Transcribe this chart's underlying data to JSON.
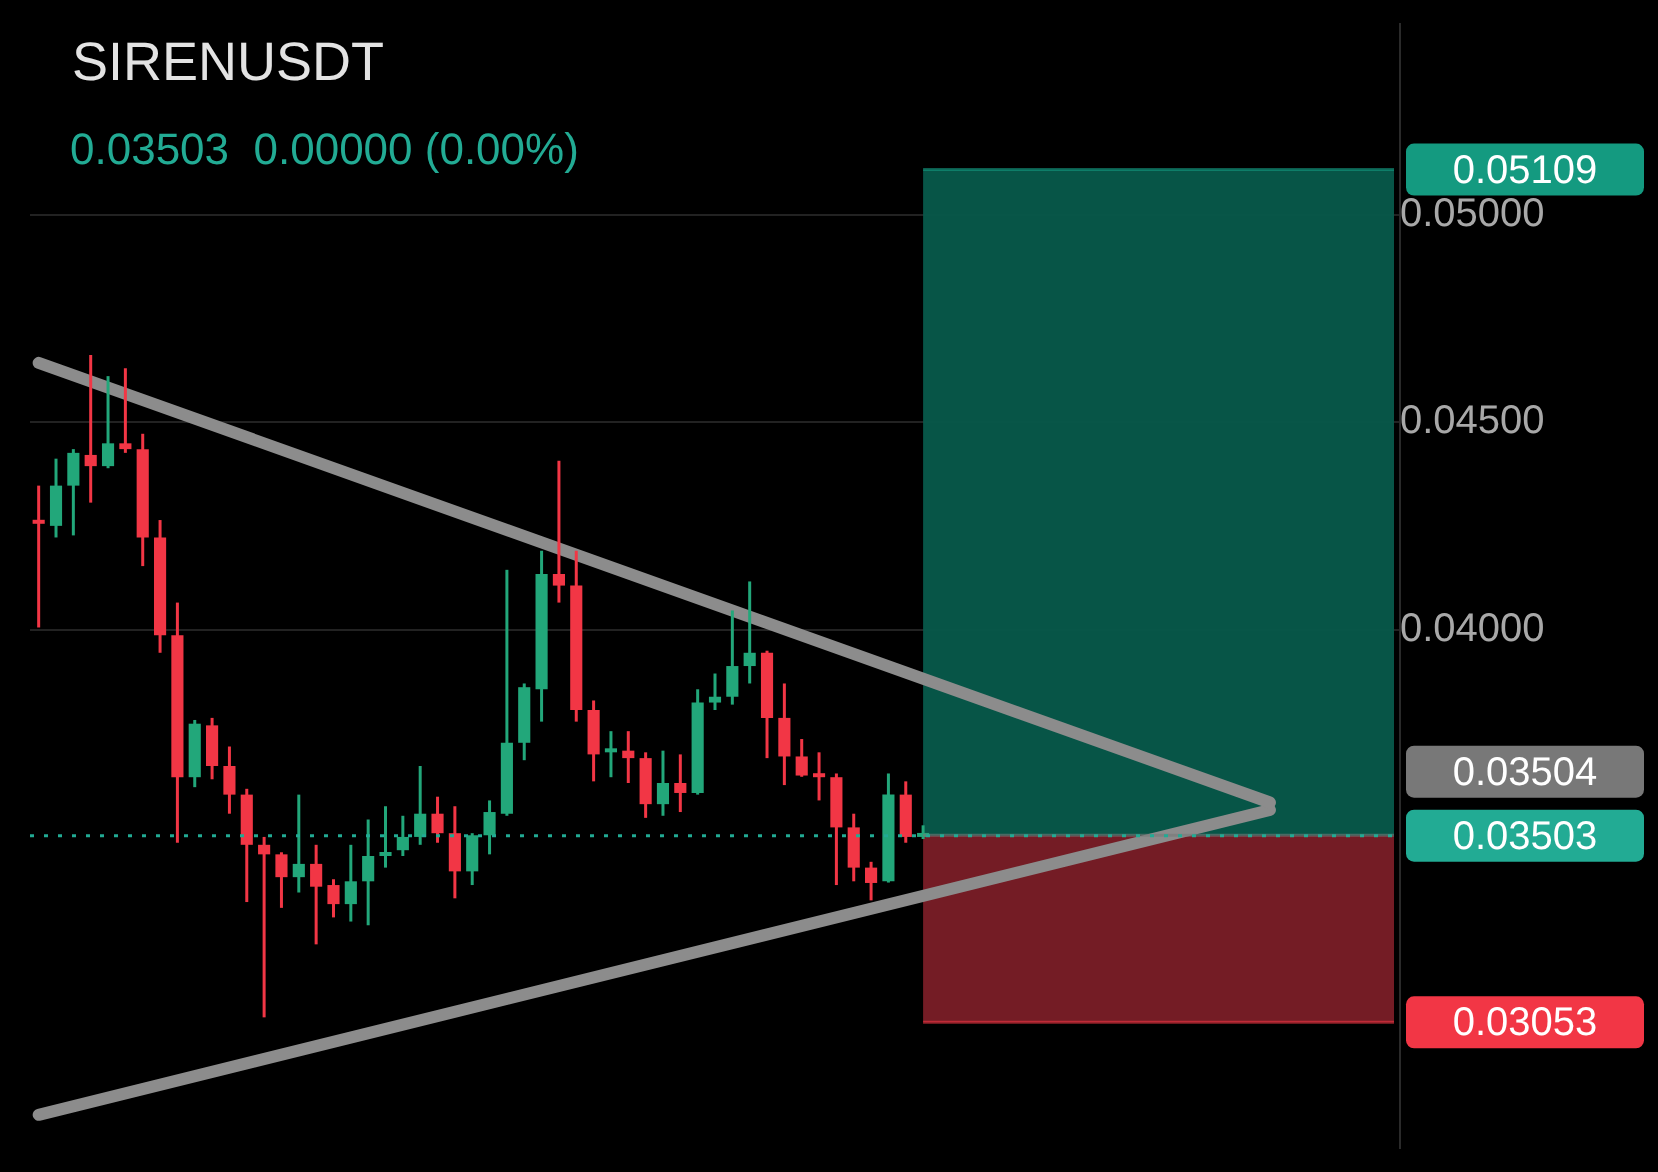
{
  "chart_data": {
    "type": "candlestick",
    "title": "SIRENUSDT",
    "subtitle": "0.03503  0.00000 (0.00%)",
    "categories": [
      null,
      null,
      null,
      null,
      null,
      null,
      null,
      null,
      null,
      null,
      null,
      null,
      null,
      null,
      null,
      null,
      null,
      null,
      null,
      null,
      null,
      null,
      null,
      null,
      null,
      null,
      null,
      null,
      null,
      null,
      null,
      null,
      null,
      null,
      null,
      null,
      null,
      null,
      null,
      null,
      null,
      null,
      null,
      null,
      null,
      null,
      null,
      null,
      null,
      null,
      null,
      null,
      null,
      null,
      null,
      null,
      null,
      null,
      null,
      null,
      null,
      null,
      null,
      null,
      null,
      null,
      null,
      null,
      null,
      null,
      null,
      null,
      null,
      null,
      null,
      null,
      null,
      null,
      null
    ],
    "ohlc": [
      [
        0.04259,
        0.04347,
        0.04005,
        0.04255
      ],
      [
        0.0425,
        0.04412,
        0.04222,
        0.04347
      ],
      [
        0.04347,
        0.04435,
        0.04227,
        0.04426
      ],
      [
        0.04421,
        0.04662,
        0.04306,
        0.04394
      ],
      [
        0.04394,
        0.04611,
        0.04389,
        0.04449
      ],
      [
        0.04449,
        0.0463,
        0.04426,
        0.04435
      ],
      [
        0.04435,
        0.04472,
        0.04153,
        0.04222
      ],
      [
        0.04222,
        0.04264,
        0.03944,
        0.03986
      ],
      [
        0.03986,
        0.04065,
        0.03486,
        0.03644
      ],
      [
        0.03644,
        0.03782,
        0.0362,
        0.03773
      ],
      [
        0.03769,
        0.03787,
        0.03639,
        0.03671
      ],
      [
        0.03671,
        0.03718,
        0.03556,
        0.03602
      ],
      [
        0.03602,
        0.03616,
        0.03343,
        0.03481
      ],
      [
        0.03481,
        0.035,
        0.03065,
        0.03458
      ],
      [
        0.03458,
        0.03463,
        0.03329,
        0.03403
      ],
      [
        0.03403,
        0.03602,
        0.03366,
        0.03435
      ],
      [
        0.03435,
        0.03481,
        0.03241,
        0.0338
      ],
      [
        0.03384,
        0.03398,
        0.03306,
        0.03338
      ],
      [
        0.03338,
        0.03481,
        0.03296,
        0.03393
      ],
      [
        0.03393,
        0.03542,
        0.03287,
        0.03454
      ],
      [
        0.03454,
        0.03574,
        0.03426,
        0.03463
      ],
      [
        0.03468,
        0.03551,
        0.03454,
        0.035
      ],
      [
        0.035,
        0.03671,
        0.03481,
        0.03556
      ],
      [
        0.03556,
        0.03597,
        0.03486,
        0.03509
      ],
      [
        0.03509,
        0.03574,
        0.03352,
        0.03417
      ],
      [
        0.03417,
        0.03509,
        0.03384,
        0.03504
      ],
      [
        0.03504,
        0.03588,
        0.03458,
        0.0356
      ],
      [
        0.03556,
        0.04144,
        0.03551,
        0.03727
      ],
      [
        0.03727,
        0.0387,
        0.03685,
        0.03861
      ],
      [
        0.03856,
        0.0419,
        0.03778,
        0.04134
      ],
      [
        0.04134,
        0.04407,
        0.04065,
        0.04106
      ],
      [
        0.04106,
        0.0419,
        0.03778,
        0.03806
      ],
      [
        0.03806,
        0.03829,
        0.03634,
        0.03699
      ],
      [
        0.03704,
        0.03755,
        0.03644,
        0.03713
      ],
      [
        0.03708,
        0.03755,
        0.0363,
        0.0369
      ],
      [
        0.0369,
        0.03704,
        0.03546,
        0.03579
      ],
      [
        0.03579,
        0.03708,
        0.03551,
        0.0363
      ],
      [
        0.0363,
        0.03699,
        0.0356,
        0.03606
      ],
      [
        0.03606,
        0.03856,
        0.03602,
        0.03824
      ],
      [
        0.03824,
        0.03894,
        0.03806,
        0.03838
      ],
      [
        0.03838,
        0.04046,
        0.03819,
        0.03912
      ],
      [
        0.03912,
        0.04116,
        0.0387,
        0.03944
      ],
      [
        0.03944,
        0.03949,
        0.0369,
        0.03787
      ],
      [
        0.03787,
        0.0387,
        0.03625,
        0.03694
      ],
      [
        0.03694,
        0.03736,
        0.03645,
        0.03648
      ],
      [
        0.03648,
        0.03704,
        0.03588,
        0.03644
      ],
      [
        0.03644,
        0.03653,
        0.03384,
        0.03523
      ],
      [
        0.03523,
        0.03556,
        0.03393,
        0.03426
      ],
      [
        0.03426,
        0.0344,
        0.03347,
        0.03389
      ],
      [
        0.03393,
        0.03653,
        0.0339,
        0.03602
      ],
      [
        0.03602,
        0.03634,
        0.03486,
        0.035
      ],
      [
        0.035,
        0.03528,
        0.03495,
        0.03503
      ],
      null,
      null,
      null,
      null,
      null,
      null,
      null,
      null,
      null,
      null,
      null,
      null,
      null,
      null,
      null,
      null,
      null,
      null,
      null,
      null,
      null,
      null,
      null,
      null,
      null,
      null,
      null
    ],
    "colors": [
      "#f23645",
      "#22a77a",
      "#22a77a",
      "#f23645",
      "#22a77a",
      "#f23645",
      "#f23645",
      "#f23645",
      "#f23645",
      "#22a77a",
      "#f23645",
      "#f23645",
      "#f23645",
      "#f23645",
      "#f23645",
      "#22a77a",
      "#f23645",
      "#f23645",
      "#22a77a",
      "#22a77a",
      "#22a77a",
      "#22a77a",
      "#22a77a",
      "#f23645",
      "#f23645",
      "#22a77a",
      "#22a77a",
      "#22a77a",
      "#22a77a",
      "#22a77a",
      "#f23645",
      "#f23645",
      "#f23645",
      "#22a77a",
      "#f23645",
      "#f23645",
      "#22a77a",
      "#f23645",
      "#22a77a",
      "#22a77a",
      "#22a77a",
      "#22a77a",
      "#f23645",
      "#f23645",
      "#f23645",
      "#f23645",
      "#f23645",
      "#f23645",
      "#f23645",
      "#22a77a",
      "#f23645",
      "#22a77a",
      null,
      null,
      null,
      null,
      null,
      null,
      null,
      null,
      null,
      null,
      null,
      null,
      null,
      null,
      null,
      null,
      null,
      null,
      null,
      null,
      null,
      null,
      null,
      null,
      null,
      null,
      null
    ],
    "series": [
      {
        "type": "line",
        "color": "#8c8c8c",
        "values": [
          0.04643,
          null,
          null,
          null,
          null,
          null,
          null,
          null,
          null,
          null,
          null,
          null,
          null,
          null,
          null,
          null,
          null,
          null,
          null,
          null,
          null,
          null,
          null,
          null,
          null,
          null,
          null,
          null,
          null,
          null,
          null,
          null,
          null,
          null,
          null,
          null,
          null,
          null,
          null,
          null,
          null,
          null,
          null,
          null,
          null,
          null,
          null,
          null,
          null,
          null,
          null,
          null,
          null,
          null,
          null,
          null,
          null,
          null,
          null,
          null,
          null,
          null,
          null,
          null,
          null,
          null,
          null,
          null,
          null,
          null,
          null,
          0.03583,
          null,
          null,
          null,
          null,
          null,
          null,
          null
        ]
      },
      {
        "type": "line",
        "color": "#8c8c8c",
        "values": [
          0.0283,
          null,
          null,
          null,
          null,
          null,
          null,
          null,
          null,
          null,
          null,
          null,
          null,
          null,
          null,
          null,
          null,
          null,
          null,
          null,
          null,
          null,
          null,
          null,
          null,
          null,
          null,
          null,
          null,
          null,
          null,
          null,
          null,
          null,
          null,
          null,
          null,
          null,
          null,
          null,
          null,
          null,
          null,
          null,
          null,
          null,
          null,
          null,
          null,
          null,
          null,
          null,
          null,
          null,
          null,
          null,
          null,
          null,
          null,
          null,
          null,
          null,
          null,
          null,
          null,
          null,
          null,
          null,
          null,
          null,
          null,
          0.03565,
          null,
          null,
          null,
          null,
          null,
          null,
          null
        ]
      }
    ],
    "ylim": [
      0.0275,
      0.0546
    ],
    "yticks": [
      {
        "value": 0.04,
        "label": "0.04000"
      },
      {
        "value": 0.045,
        "label": "0.04500"
      },
      {
        "value": 0.05,
        "label": "0.05000"
      }
    ],
    "bands": [
      {
        "axis": "y",
        "from": 0.03503,
        "to": 0.05109,
        "color": "#075a4b"
      },
      {
        "axis": "y",
        "from": 0.03053,
        "to": 0.03503,
        "color": "#7a1d27"
      }
    ],
    "ref_lines": [
      {
        "axis": "y",
        "value": 0.05109,
        "label": "0.05109",
        "color": "#149a80"
      },
      {
        "axis": "y",
        "value": 0.03504,
        "label": "0.03504",
        "color": "#787878"
      },
      {
        "axis": "y",
        "value": 0.03503,
        "label": "0.03503",
        "color": "#22ab94",
        "line_style": "dotted"
      },
      {
        "axis": "y",
        "value": 0.03053,
        "label": "0.03053",
        "color": "#f23645"
      }
    ],
    "grid": "y",
    "legend": false,
    "tick_labels": "y"
  }
}
